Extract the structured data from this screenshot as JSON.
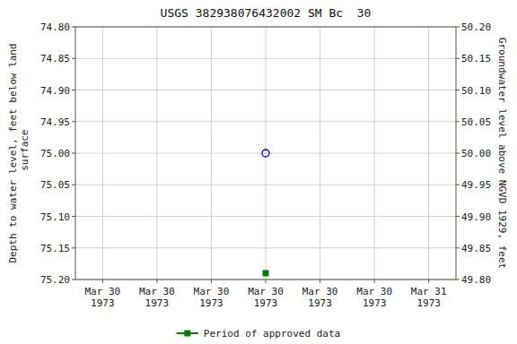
{
  "chart_data": {
    "type": "scatter",
    "title": "USGS 382938076432002 SM Bc  30",
    "ylabel": "Depth to water level, feet below land\n surface",
    "y2label": "Groundwater level above NGVD 1929, feet",
    "categories": [
      "Mar 30\n1973",
      "Mar 30\n1973",
      "Mar 30\n1973",
      "Mar 30\n1973",
      "Mar 30\n1973",
      "Mar 30\n1973",
      "Mar 31\n1973"
    ],
    "series": [
      {
        "color": "#0000cc",
        "marker": "open-circle",
        "values": [
          null,
          null,
          null,
          75.0,
          null,
          null,
          null
        ]
      },
      {
        "name": "Period of approved data",
        "color": "#008000",
        "marker": "square",
        "values": [
          null,
          null,
          null,
          75.19,
          null,
          null,
          null
        ]
      }
    ],
    "ylim": [
      75.2,
      74.8
    ],
    "yticks": [
      {
        "value": 74.8,
        "label": "74.80"
      },
      {
        "value": 74.85,
        "label": "74.85"
      },
      {
        "value": 74.9,
        "label": "74.90"
      },
      {
        "value": 74.95,
        "label": "74.95"
      },
      {
        "value": 75.0,
        "label": "75.00"
      },
      {
        "value": 75.05,
        "label": "75.05"
      },
      {
        "value": 75.1,
        "label": "75.10"
      },
      {
        "value": 75.15,
        "label": "75.15"
      },
      {
        "value": 75.2,
        "label": "75.20"
      }
    ],
    "y2lim": [
      49.8,
      50.2
    ],
    "y2ticks": [
      {
        "value": 50.2,
        "label": "50.20"
      },
      {
        "value": 50.15,
        "label": "50.15"
      },
      {
        "value": 50.1,
        "label": "50.10"
      },
      {
        "value": 50.05,
        "label": "50.05"
      },
      {
        "value": 50.0,
        "label": "50.00"
      },
      {
        "value": 49.95,
        "label": "49.95"
      },
      {
        "value": 49.9,
        "label": "49.90"
      },
      {
        "value": 49.85,
        "label": "49.85"
      },
      {
        "value": 49.8,
        "label": "49.80"
      }
    ],
    "grid": true,
    "legend": "bottom"
  }
}
